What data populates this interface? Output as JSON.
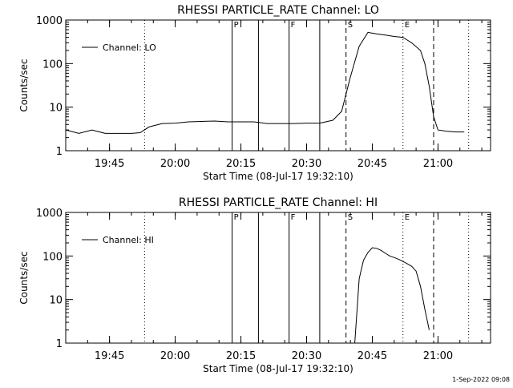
{
  "footer": {
    "timestamp": "1-Sep-2022 09:08"
  },
  "chart_data": [
    {
      "type": "line",
      "title": "RHESSI PARTICLE_RATE Channel: LO",
      "xlabel": "Start Time (08-Jul-17 19:32:10)",
      "ylabel": "Counts/sec",
      "yscale": "log",
      "ylim": [
        1,
        1000
      ],
      "xlim": [
        "19:35",
        "21:12"
      ],
      "x_ticks": [
        "19:45",
        "20:00",
        "20:15",
        "20:30",
        "20:45",
        "21:00"
      ],
      "y_ticks": [
        "1",
        "10",
        "100",
        "1000"
      ],
      "legend": {
        "entries": [
          "Channel: LO"
        ],
        "position": "top-left"
      },
      "event_markers": [
        {
          "time": "20:13",
          "label": "P",
          "style": "solid"
        },
        {
          "time": "20:19",
          "label": "",
          "style": "solid"
        },
        {
          "time": "20:26",
          "label": "F",
          "style": "solid"
        },
        {
          "time": "20:33",
          "label": "",
          "style": "solid"
        },
        {
          "time": "20:39",
          "label": "S",
          "style": "dashed"
        },
        {
          "time": "20:52",
          "label": "E",
          "style": "dotted"
        },
        {
          "time": "20:59",
          "label": "",
          "style": "dashed"
        },
        {
          "time": "21:07",
          "label": "",
          "style": "dotted"
        },
        {
          "time": "19:53",
          "label": "",
          "style": "dotted"
        }
      ],
      "series": [
        {
          "name": "Channel: LO",
          "x": [
            "19:35",
            "19:38",
            "19:41",
            "19:44",
            "19:47",
            "19:50",
            "19:52",
            "19:54",
            "19:57",
            "20:00",
            "20:03",
            "20:06",
            "20:09",
            "20:12",
            "20:15",
            "20:18",
            "20:21",
            "20:24",
            "20:27",
            "20:30",
            "20:33",
            "20:36",
            "20:38",
            "20:40",
            "20:42",
            "20:44",
            "20:46",
            "20:48",
            "20:50",
            "20:52",
            "20:54",
            "20:56",
            "20:57",
            "20:58",
            "20:59",
            "21:00",
            "21:02",
            "21:04",
            "21:06"
          ],
          "y": [
            3,
            2.5,
            3,
            2.5,
            2.5,
            2.5,
            2.6,
            3.5,
            4.2,
            4.3,
            4.6,
            4.7,
            4.8,
            4.6,
            4.6,
            4.6,
            4.2,
            4.2,
            4.2,
            4.3,
            4.3,
            5,
            8,
            50,
            250,
            520,
            480,
            450,
            420,
            400,
            300,
            200,
            100,
            30,
            6,
            3,
            2.8,
            2.7,
            2.7
          ]
        }
      ]
    },
    {
      "type": "line",
      "title": "RHESSI PARTICLE_RATE Channel: HI",
      "xlabel": "Start Time (08-Jul-17 19:32:10)",
      "ylabel": "Counts/sec",
      "yscale": "log",
      "ylim": [
        1,
        1000
      ],
      "xlim": [
        "19:35",
        "21:12"
      ],
      "x_ticks": [
        "19:45",
        "20:00",
        "20:15",
        "20:30",
        "20:45",
        "21:00"
      ],
      "y_ticks": [
        "1",
        "10",
        "100",
        "1000"
      ],
      "legend": {
        "entries": [
          "Channel: HI"
        ],
        "position": "top-left"
      },
      "event_markers": [
        {
          "time": "20:13",
          "label": "P",
          "style": "solid"
        },
        {
          "time": "20:19",
          "label": "",
          "style": "solid"
        },
        {
          "time": "20:26",
          "label": "F",
          "style": "solid"
        },
        {
          "time": "20:33",
          "label": "",
          "style": "solid"
        },
        {
          "time": "20:39",
          "label": "S",
          "style": "dashed"
        },
        {
          "time": "20:52",
          "label": "E",
          "style": "dotted"
        },
        {
          "time": "20:59",
          "label": "",
          "style": "dashed"
        },
        {
          "time": "21:07",
          "label": "",
          "style": "dotted"
        },
        {
          "time": "19:53",
          "label": "",
          "style": "dotted"
        }
      ],
      "series": [
        {
          "name": "Channel: HI",
          "x": [
            "20:41",
            "20:42",
            "20:43",
            "20:44",
            "20:45",
            "20:46",
            "20:47",
            "20:48",
            "20:49",
            "20:50",
            "20:51",
            "20:52",
            "20:53",
            "20:54",
            "20:55",
            "20:56",
            "20:57",
            "20:58"
          ],
          "y": [
            1,
            30,
            80,
            120,
            155,
            150,
            135,
            115,
            100,
            92,
            84,
            75,
            66,
            58,
            45,
            20,
            6,
            2
          ]
        }
      ]
    }
  ]
}
